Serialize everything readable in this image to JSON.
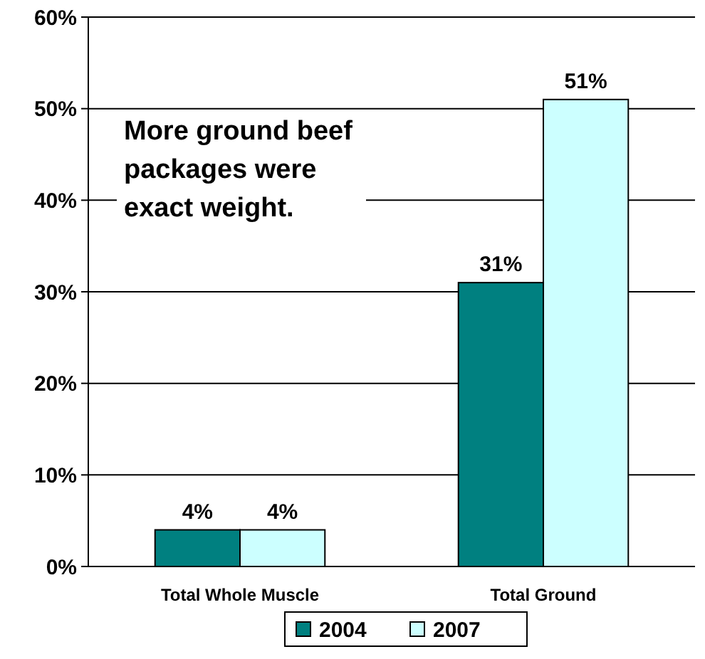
{
  "chart_data": {
    "type": "bar",
    "categories": [
      "Total Whole Muscle",
      "Total Ground"
    ],
    "series": [
      {
        "name": "2004",
        "color": "#008080",
        "values": [
          4,
          31
        ],
        "value_labels": [
          "4%",
          "31%"
        ]
      },
      {
        "name": "2007",
        "color": "#ccffff",
        "values": [
          4,
          51
        ],
        "value_labels": [
          "4%",
          "51%"
        ]
      }
    ],
    "ylim": [
      0,
      60
    ],
    "yticks": [
      {
        "value": 0,
        "label": "0%"
      },
      {
        "value": 10,
        "label": "10%"
      },
      {
        "value": 20,
        "label": "20%"
      },
      {
        "value": 30,
        "label": "30%"
      },
      {
        "value": 40,
        "label": "40%"
      },
      {
        "value": 50,
        "label": "50%"
      },
      {
        "value": 60,
        "label": "60%"
      }
    ],
    "grid": "y",
    "legend": "bottom",
    "annotations": [
      "More ground beef packages were exact weight."
    ]
  }
}
